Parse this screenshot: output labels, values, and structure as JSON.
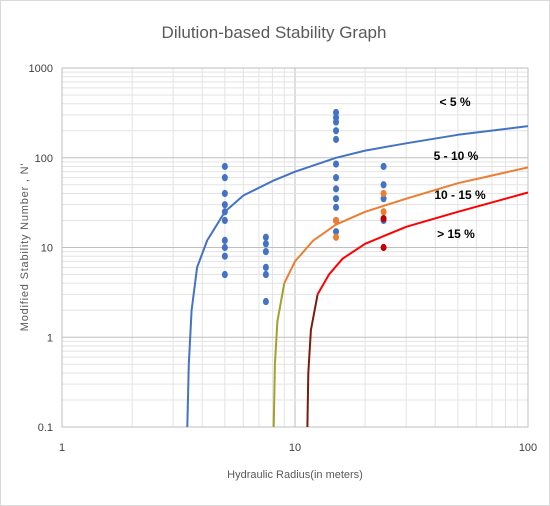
{
  "chart_data": {
    "type": "scatter",
    "title": "Dilution-based Stability Graph",
    "xlabel": "Hydraulic Radius(in meters)",
    "ylabel": "Modified Stability Number , N'",
    "x_scale": "log",
    "y_scale": "log",
    "xlim": [
      1,
      100
    ],
    "ylim": [
      0.1,
      1000
    ],
    "x_ticks": [
      "1",
      "10",
      "100"
    ],
    "y_ticks": [
      "0.1",
      "1",
      "10",
      "100",
      "1000"
    ],
    "grid": true,
    "curves": [
      {
        "label": "< 5 %",
        "color": "#4472c4",
        "points": [
          [
            3.45,
            0.1
          ],
          [
            3.5,
            0.5
          ],
          [
            3.6,
            2
          ],
          [
            3.8,
            6
          ],
          [
            4.2,
            12
          ],
          [
            5,
            25
          ],
          [
            6,
            38
          ],
          [
            8,
            55
          ],
          [
            10,
            70
          ],
          [
            15,
            100
          ],
          [
            20,
            120
          ],
          [
            30,
            145
          ],
          [
            50,
            180
          ],
          [
            100,
            225
          ]
        ]
      },
      {
        "label": "5 - 10 %",
        "color": "#ed7d31",
        "points": [
          [
            8.1,
            0.1
          ],
          [
            8.2,
            0.5
          ],
          [
            8.4,
            1.5
          ],
          [
            9,
            4
          ],
          [
            10,
            7
          ],
          [
            12,
            12
          ],
          [
            15,
            18
          ],
          [
            20,
            25
          ],
          [
            30,
            35
          ],
          [
            50,
            52
          ],
          [
            100,
            78
          ]
        ]
      },
      {
        "label": "10 - 15 %",
        "color": "#ff0000",
        "points": [
          [
            11.3,
            0.1
          ],
          [
            11.4,
            0.4
          ],
          [
            11.7,
            1.2
          ],
          [
            12.5,
            3
          ],
          [
            14,
            5
          ],
          [
            16,
            7.5
          ],
          [
            20,
            11
          ],
          [
            25,
            14
          ],
          [
            30,
            17
          ],
          [
            50,
            25
          ],
          [
            100,
            41
          ]
        ]
      },
      {
        "label": "> 15 %",
        "color": "#c00000",
        "points": []
      }
    ],
    "series": [
      {
        "color": "#4472c4",
        "points": [
          [
            5,
            80
          ],
          [
            5,
            60
          ],
          [
            5,
            40
          ],
          [
            5,
            30
          ],
          [
            5,
            25
          ],
          [
            5,
            20
          ],
          [
            5,
            12
          ],
          [
            5,
            10
          ],
          [
            5,
            8
          ],
          [
            5,
            5
          ],
          [
            7.5,
            13
          ],
          [
            7.5,
            11
          ],
          [
            7.5,
            9
          ],
          [
            7.5,
            6
          ],
          [
            7.5,
            5
          ],
          [
            7.5,
            2.5
          ],
          [
            15,
            320
          ],
          [
            15,
            280
          ],
          [
            15,
            250
          ],
          [
            15,
            200
          ],
          [
            15,
            160
          ],
          [
            15,
            85
          ],
          [
            15,
            60
          ],
          [
            15,
            45
          ],
          [
            15,
            35
          ],
          [
            15,
            28
          ],
          [
            15,
            20
          ],
          [
            15,
            15
          ],
          [
            24,
            80
          ],
          [
            24,
            50
          ],
          [
            24,
            35
          ],
          [
            24,
            20
          ]
        ]
      },
      {
        "color": "#ed7d31",
        "points": [
          [
            15,
            20
          ],
          [
            15,
            13
          ],
          [
            24,
            40
          ],
          [
            24,
            25
          ]
        ]
      },
      {
        "color": "#c00000",
        "points": [
          [
            24,
            21
          ],
          [
            24,
            10
          ]
        ]
      }
    ]
  }
}
